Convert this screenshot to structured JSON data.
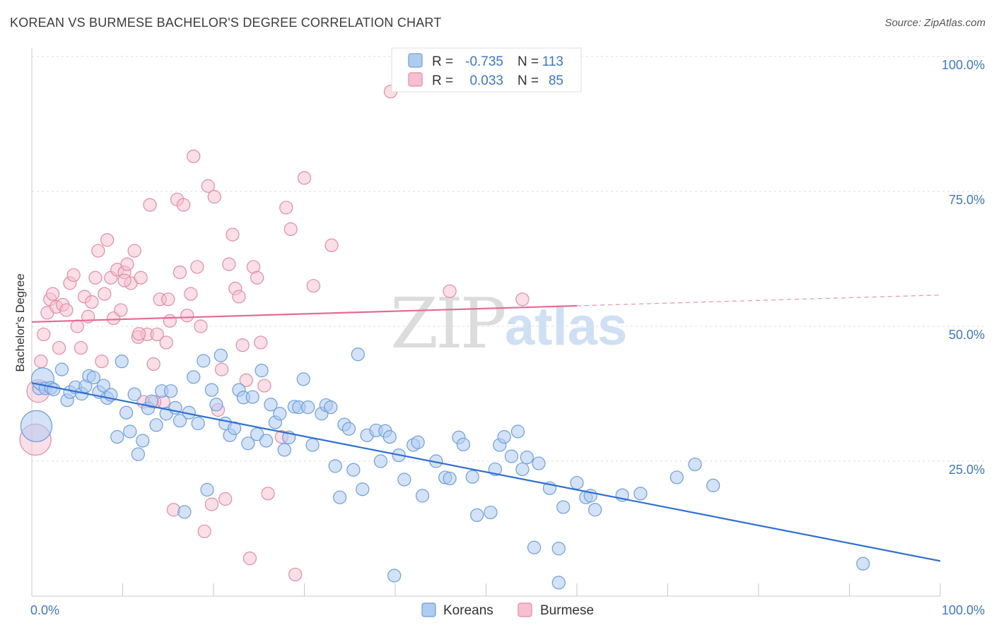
{
  "title": "KOREAN VS BURMESE BACHELOR'S DEGREE CORRELATION CHART",
  "source": "Source: ZipAtlas.com",
  "watermark": {
    "part1": "ZIP",
    "part2": "atlas"
  },
  "chart_data": {
    "type": "scatter",
    "ylabel": "Bachelor's Degree",
    "xlim": [
      0,
      100
    ],
    "ylim": [
      0,
      100
    ],
    "x_tick_labels": [
      "0.0%",
      "100.0%"
    ],
    "y_ticks": [
      {
        "value": 100,
        "label": "100.0%"
      },
      {
        "value": 75,
        "label": "75.0%"
      },
      {
        "value": 50,
        "label": "50.0%"
      },
      {
        "value": 25,
        "label": "25.0%"
      }
    ],
    "grid": "horizontal dashed",
    "colors": {
      "koreans_fill": "#aecbf0",
      "koreans_stroke": "#6a9fe0",
      "koreans_line": "#2f6fd1",
      "burmese_fill": "#f6c0d0",
      "burmese_stroke": "#e58aa8",
      "burmese_line": "#e56b95"
    },
    "legend": {
      "rows": [
        {
          "r_label": "R =",
          "r_value": "-0.735",
          "n_label": "N =",
          "n_value": "113"
        },
        {
          "r_label": "R =",
          "r_value": "0.033",
          "n_label": "N =",
          "n_value": "85"
        }
      ]
    },
    "series": [
      {
        "name": "Koreans",
        "trend": {
          "x": [
            0,
            100
          ],
          "y": [
            39.5,
            6.5
          ]
        },
        "points": [
          [
            0.5,
            31.5
          ],
          [
            0.8,
            38.5
          ],
          [
            1.2,
            40.2
          ],
          [
            1.5,
            38.5
          ],
          [
            2.1,
            38.6
          ],
          [
            2.4,
            38.3
          ],
          [
            3.3,
            42.0
          ],
          [
            3.9,
            36.3
          ],
          [
            4.2,
            37.8
          ],
          [
            4.8,
            38.7
          ],
          [
            5.5,
            37.5
          ],
          [
            5.9,
            38.9
          ],
          [
            6.3,
            40.8
          ],
          [
            6.8,
            40.5
          ],
          [
            7.4,
            37.8
          ],
          [
            7.9,
            39.0
          ],
          [
            8.3,
            36.7
          ],
          [
            8.7,
            37.3
          ],
          [
            9.4,
            29.5
          ],
          [
            9.9,
            43.5
          ],
          [
            10.4,
            34.0
          ],
          [
            10.8,
            30.5
          ],
          [
            11.3,
            37.4
          ],
          [
            11.7,
            26.3
          ],
          [
            12.2,
            28.8
          ],
          [
            12.8,
            34.8
          ],
          [
            13.2,
            36.1
          ],
          [
            13.7,
            31.7
          ],
          [
            14.3,
            38.0
          ],
          [
            14.8,
            33.8
          ],
          [
            15.3,
            38.0
          ],
          [
            15.8,
            34.9
          ],
          [
            16.3,
            32.5
          ],
          [
            16.8,
            15.6
          ],
          [
            17.3,
            34.0
          ],
          [
            17.8,
            40.6
          ],
          [
            18.3,
            32.0
          ],
          [
            18.9,
            43.6
          ],
          [
            19.3,
            19.7
          ],
          [
            19.8,
            38.2
          ],
          [
            20.3,
            35.5
          ],
          [
            20.8,
            44.6
          ],
          [
            21.3,
            32.0
          ],
          [
            21.8,
            29.8
          ],
          [
            22.3,
            31.1
          ],
          [
            22.8,
            38.2
          ],
          [
            23.3,
            36.8
          ],
          [
            23.8,
            28.3
          ],
          [
            24.3,
            36.9
          ],
          [
            24.8,
            30.0
          ],
          [
            25.3,
            41.8
          ],
          [
            25.8,
            28.8
          ],
          [
            26.3,
            35.5
          ],
          [
            26.8,
            32.2
          ],
          [
            27.3,
            33.8
          ],
          [
            27.8,
            27.1
          ],
          [
            28.3,
            29.4
          ],
          [
            28.9,
            35.1
          ],
          [
            29.4,
            35.0
          ],
          [
            29.9,
            40.2
          ],
          [
            30.4,
            35.0
          ],
          [
            30.9,
            28.0
          ],
          [
            31.9,
            33.8
          ],
          [
            32.4,
            35.4
          ],
          [
            32.9,
            35.0
          ],
          [
            33.4,
            24.1
          ],
          [
            33.9,
            18.3
          ],
          [
            34.4,
            31.8
          ],
          [
            34.9,
            31.0
          ],
          [
            35.4,
            23.4
          ],
          [
            35.9,
            44.8
          ],
          [
            36.4,
            19.8
          ],
          [
            36.9,
            29.8
          ],
          [
            37.9,
            30.7
          ],
          [
            38.4,
            25.0
          ],
          [
            38.9,
            30.6
          ],
          [
            39.4,
            29.5
          ],
          [
            39.9,
            3.8
          ],
          [
            40.4,
            26.1
          ],
          [
            41.0,
            21.6
          ],
          [
            42.0,
            28.0
          ],
          [
            42.5,
            28.5
          ],
          [
            43.0,
            18.6
          ],
          [
            44.5,
            25.0
          ],
          [
            45.5,
            22.0
          ],
          [
            46.0,
            21.8
          ],
          [
            47.0,
            29.4
          ],
          [
            47.5,
            28.1
          ],
          [
            48.5,
            22.1
          ],
          [
            49.0,
            15.0
          ],
          [
            50.5,
            15.5
          ],
          [
            51.0,
            23.5
          ],
          [
            51.5,
            28.0
          ],
          [
            52.0,
            29.5
          ],
          [
            52.8,
            25.9
          ],
          [
            53.5,
            30.5
          ],
          [
            54.0,
            23.5
          ],
          [
            54.5,
            25.7
          ],
          [
            55.3,
            9.0
          ],
          [
            55.8,
            24.6
          ],
          [
            57.0,
            20.0
          ],
          [
            58.0,
            8.8
          ],
          [
            58.5,
            16.5
          ],
          [
            60.0,
            21.0
          ],
          [
            61.0,
            18.3
          ],
          [
            61.5,
            18.6
          ],
          [
            62.0,
            16.0
          ],
          [
            65.0,
            18.7
          ],
          [
            67.0,
            19.0
          ],
          [
            71.0,
            22.0
          ],
          [
            73.0,
            24.4
          ],
          [
            75.0,
            20.5
          ],
          [
            91.5,
            6.0
          ],
          [
            58.0,
            2.5
          ]
        ],
        "sizes": {
          "0": 22,
          "2": 16
        }
      },
      {
        "name": "Burmese",
        "trend": {
          "x": [
            0,
            60
          ],
          "y": [
            50.8,
            53.8
          ]
        },
        "trend_dashed": {
          "x": [
            60,
            100
          ],
          "y": [
            53.8,
            55.8
          ]
        },
        "points": [
          [
            0.4,
            29.0
          ],
          [
            0.7,
            38.0
          ],
          [
            1.0,
            43.5
          ],
          [
            1.3,
            48.5
          ],
          [
            1.7,
            52.5
          ],
          [
            2.0,
            55.0
          ],
          [
            2.3,
            56.0
          ],
          [
            2.7,
            53.6
          ],
          [
            3.0,
            46.0
          ],
          [
            3.4,
            54.0
          ],
          [
            3.8,
            53.0
          ],
          [
            4.2,
            58.0
          ],
          [
            4.6,
            59.5
          ],
          [
            5.0,
            50.0
          ],
          [
            5.4,
            46.0
          ],
          [
            5.8,
            55.5
          ],
          [
            6.2,
            51.8
          ],
          [
            6.6,
            54.5
          ],
          [
            7.0,
            59.0
          ],
          [
            7.3,
            64.0
          ],
          [
            7.7,
            43.5
          ],
          [
            8.0,
            56.0
          ],
          [
            8.3,
            66.0
          ],
          [
            8.7,
            59.0
          ],
          [
            9.0,
            51.5
          ],
          [
            9.4,
            60.5
          ],
          [
            9.8,
            53.0
          ],
          [
            10.2,
            60.0
          ],
          [
            10.5,
            61.5
          ],
          [
            10.9,
            58.0
          ],
          [
            11.3,
            64.0
          ],
          [
            11.7,
            48.0
          ],
          [
            12.0,
            59.0
          ],
          [
            12.3,
            36.0
          ],
          [
            12.7,
            48.5
          ],
          [
            13.0,
            72.5
          ],
          [
            13.4,
            43.0
          ],
          [
            13.8,
            48.5
          ],
          [
            14.1,
            55.0
          ],
          [
            14.5,
            36.0
          ],
          [
            14.8,
            47.0
          ],
          [
            15.2,
            51.0
          ],
          [
            15.6,
            16.0
          ],
          [
            16.0,
            73.5
          ],
          [
            16.3,
            60.0
          ],
          [
            16.7,
            72.5
          ],
          [
            17.1,
            52.0
          ],
          [
            17.5,
            56.0
          ],
          [
            17.8,
            81.5
          ],
          [
            18.2,
            61.0
          ],
          [
            18.6,
            50.0
          ],
          [
            19.0,
            12.0
          ],
          [
            19.4,
            76.0
          ],
          [
            19.8,
            17.0
          ],
          [
            20.1,
            74.0
          ],
          [
            20.5,
            34.5
          ],
          [
            20.9,
            42.0
          ],
          [
            21.3,
            18.0
          ],
          [
            21.7,
            61.5
          ],
          [
            22.1,
            67.0
          ],
          [
            22.4,
            57.0
          ],
          [
            22.8,
            55.5
          ],
          [
            23.2,
            46.5
          ],
          [
            23.6,
            40.0
          ],
          [
            24.0,
            7.0
          ],
          [
            24.4,
            61.0
          ],
          [
            24.8,
            59.0
          ],
          [
            25.2,
            47.0
          ],
          [
            25.6,
            39.0
          ],
          [
            26.0,
            19.0
          ],
          [
            27.5,
            29.5
          ],
          [
            28.0,
            72.0
          ],
          [
            28.5,
            68.0
          ],
          [
            29.0,
            4.0
          ],
          [
            30.0,
            77.5
          ],
          [
            31.0,
            57.5
          ],
          [
            33.0,
            65.0
          ],
          [
            39.5,
            93.5
          ],
          [
            46.0,
            56.5
          ],
          [
            54.0,
            55.0
          ],
          [
            15.0,
            55.0
          ],
          [
            10.2,
            58.5
          ],
          [
            11.8,
            48.6
          ],
          [
            13.5,
            36.0
          ]
        ],
        "sizes": {
          "0": 22,
          "1": 16
        }
      }
    ]
  },
  "bottom_legend": {
    "items": [
      "Koreans",
      "Burmese"
    ]
  }
}
